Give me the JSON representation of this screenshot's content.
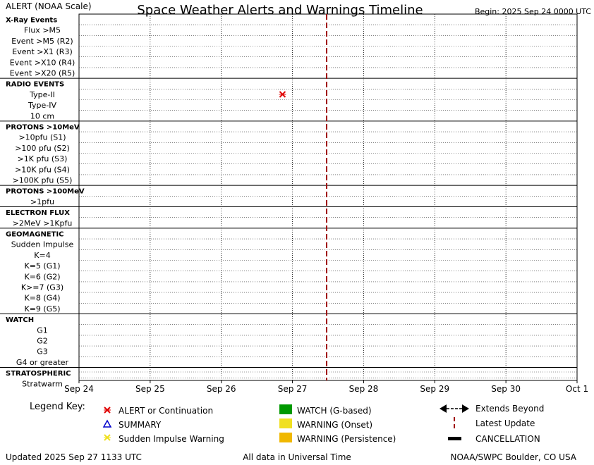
{
  "header": {
    "alert_label": "ALERT (NOAA Scale)",
    "title": "Space Weather Alerts and Warnings Timeline",
    "begin": "Begin: 2025 Sep 24 0000 UTC"
  },
  "rows": [
    {
      "label": "X-Ray Events",
      "kind": "section"
    },
    {
      "label": "Flux >M5",
      "kind": "item"
    },
    {
      "label": "Event >M5 (R2)",
      "kind": "item"
    },
    {
      "label": "Event >X1 (R3)",
      "kind": "item"
    },
    {
      "label": "Event >X10 (R4)",
      "kind": "item"
    },
    {
      "label": "Event >X20 (R5)",
      "kind": "item"
    },
    {
      "label": "RADIO EVENTS",
      "kind": "section"
    },
    {
      "label": "Type-II",
      "kind": "item"
    },
    {
      "label": "Type-IV",
      "kind": "item"
    },
    {
      "label": "10 cm",
      "kind": "item"
    },
    {
      "label": "PROTONS >10MeV",
      "kind": "section"
    },
    {
      "label": ">10pfu (S1)",
      "kind": "item"
    },
    {
      "label": ">100 pfu (S2)",
      "kind": "item"
    },
    {
      "label": ">1K pfu (S3)",
      "kind": "item"
    },
    {
      "label": ">10K pfu (S4)",
      "kind": "item"
    },
    {
      "label": ">100K pfu (S5)",
      "kind": "item"
    },
    {
      "label": "PROTONS >100MeV",
      "kind": "section"
    },
    {
      "label": ">1pfu",
      "kind": "item"
    },
    {
      "label": "ELECTRON FLUX",
      "kind": "section"
    },
    {
      "label": ">2MeV >1Kpfu",
      "kind": "item"
    },
    {
      "label": "GEOMAGNETIC",
      "kind": "section"
    },
    {
      "label": "Sudden Impulse",
      "kind": "item"
    },
    {
      "label": "K=4",
      "kind": "item"
    },
    {
      "label": "K=5 (G1)",
      "kind": "item"
    },
    {
      "label": "K=6 (G2)",
      "kind": "item"
    },
    {
      "label": "K>=7 (G3)",
      "kind": "item"
    },
    {
      "label": "K=8 (G4)",
      "kind": "item"
    },
    {
      "label": "K=9 (G5)",
      "kind": "item"
    },
    {
      "label": "WATCH",
      "kind": "section"
    },
    {
      "label": "G1",
      "kind": "item"
    },
    {
      "label": "G2",
      "kind": "item"
    },
    {
      "label": "G3",
      "kind": "item"
    },
    {
      "label": "G4 or greater",
      "kind": "item"
    },
    {
      "label": "STRATOSPHERIC",
      "kind": "section"
    },
    {
      "label": "Stratwarm",
      "kind": "item"
    }
  ],
  "chart_data": {
    "type": "scatter",
    "x_axis": {
      "ticks": [
        "Sep 24",
        "Sep 25",
        "Sep 26",
        "Sep 27",
        "Sep 28",
        "Sep 29",
        "Sep 30",
        "Oct 1"
      ],
      "range_days": [
        0,
        7
      ]
    },
    "events": [
      {
        "row": "Type-II",
        "day": 2.86,
        "type": "alert"
      }
    ],
    "latest_update_day": 3.48,
    "grid": true,
    "colors": {
      "alert": "#e00000",
      "summary": "#0000cc",
      "sudden_impulse": "#f0e020",
      "watch": "#009900",
      "warning_onset": "#f0e020",
      "warning_persistence": "#f0b800",
      "latest_update": "#a01010",
      "cancellation": "#000000"
    }
  },
  "legend": {
    "title": "Legend Key:",
    "items": [
      {
        "label": "ALERT or Continuation",
        "symbol": "alert-x"
      },
      {
        "label": "SUMMARY",
        "symbol": "summary-triangle"
      },
      {
        "label": "Sudden Impulse Warning",
        "symbol": "sudden-impulse-x"
      },
      {
        "label": "WATCH (G-based)",
        "symbol": "watch-square"
      },
      {
        "label": "WARNING (Onset)",
        "symbol": "warning-onset-square"
      },
      {
        "label": "WARNING (Persistence)",
        "symbol": "warning-persistence-square"
      },
      {
        "label": "Extends Beyond",
        "symbol": "double-arrow"
      },
      {
        "label": "Latest Update",
        "symbol": "dashed-line"
      },
      {
        "label": "CANCELLATION",
        "symbol": "black-bar"
      }
    ]
  },
  "footer": {
    "updated": "Updated 2025 Sep 27 1133 UTC",
    "universal": "All data in Universal Time",
    "credit": "NOAA/SWPC Boulder, CO USA"
  }
}
